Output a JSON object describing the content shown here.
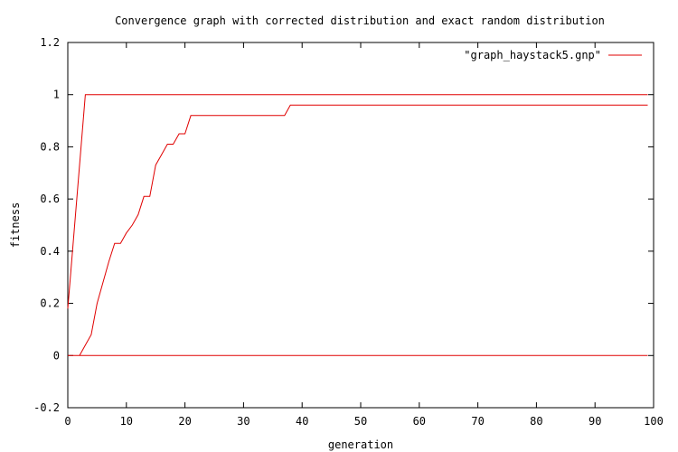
{
  "chart_data": {
    "type": "line",
    "title": "Convergence graph with corrected distribution and exact random distribution",
    "xlabel": "generation",
    "ylabel": "fitness",
    "xlim": [
      0,
      100
    ],
    "ylim": [
      -0.2,
      1.2
    ],
    "xticks": [
      0,
      10,
      20,
      30,
      40,
      50,
      60,
      70,
      80,
      90,
      100
    ],
    "yticks": [
      -0.2,
      0,
      0.2,
      0.4,
      0.6,
      0.8,
      1,
      1.2
    ],
    "ytick_labels": [
      "-0.2",
      "0",
      "0.2",
      "0.4",
      "0.6",
      "0.8",
      "1",
      "1.2"
    ],
    "grid": false,
    "legend_position": "top-right",
    "legend_label": "\"graph_haystack5.gnp\"",
    "color": "#e00000",
    "series": [
      {
        "points": [
          [
            0,
            0.18
          ],
          [
            3,
            1
          ],
          [
            99,
            1
          ]
        ]
      },
      {
        "points": [
          [
            2,
            0
          ],
          [
            3,
            0.04
          ],
          [
            4,
            0.08
          ],
          [
            5,
            0.2
          ],
          [
            6,
            0.28
          ],
          [
            7,
            0.36
          ],
          [
            8,
            0.43
          ],
          [
            9,
            0.43
          ],
          [
            10,
            0.47
          ],
          [
            11,
            0.5
          ],
          [
            12,
            0.54
          ],
          [
            13,
            0.61
          ],
          [
            14,
            0.61
          ],
          [
            15,
            0.73
          ],
          [
            16,
            0.77
          ],
          [
            17,
            0.81
          ],
          [
            18,
            0.81
          ],
          [
            19,
            0.85
          ],
          [
            20,
            0.85
          ],
          [
            21,
            0.92
          ],
          [
            37,
            0.92
          ],
          [
            38,
            0.96
          ],
          [
            99,
            0.96
          ]
        ]
      },
      {
        "points": [
          [
            0,
            0
          ],
          [
            99,
            0
          ]
        ]
      }
    ]
  }
}
